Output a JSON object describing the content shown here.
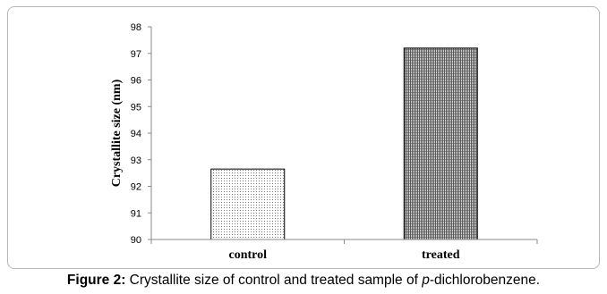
{
  "chart_data": {
    "type": "bar",
    "categories": [
      "control",
      "treated"
    ],
    "values": [
      92.65,
      97.2
    ],
    "ylabel": "Crystallite size (nm)",
    "xlabel": "",
    "ylim": [
      90,
      98
    ],
    "yticks": [
      90,
      91,
      92,
      93,
      94,
      95,
      96,
      97,
      98
    ],
    "grid": false,
    "legend": "none",
    "bar_fills": [
      "dotted",
      "vertical-hatch"
    ]
  },
  "caption": {
    "label": "Figure 2:",
    "text_before": " Crystallite size of control and treated sample of ",
    "italic": "p",
    "text_after": "-dichlorobenzene."
  }
}
